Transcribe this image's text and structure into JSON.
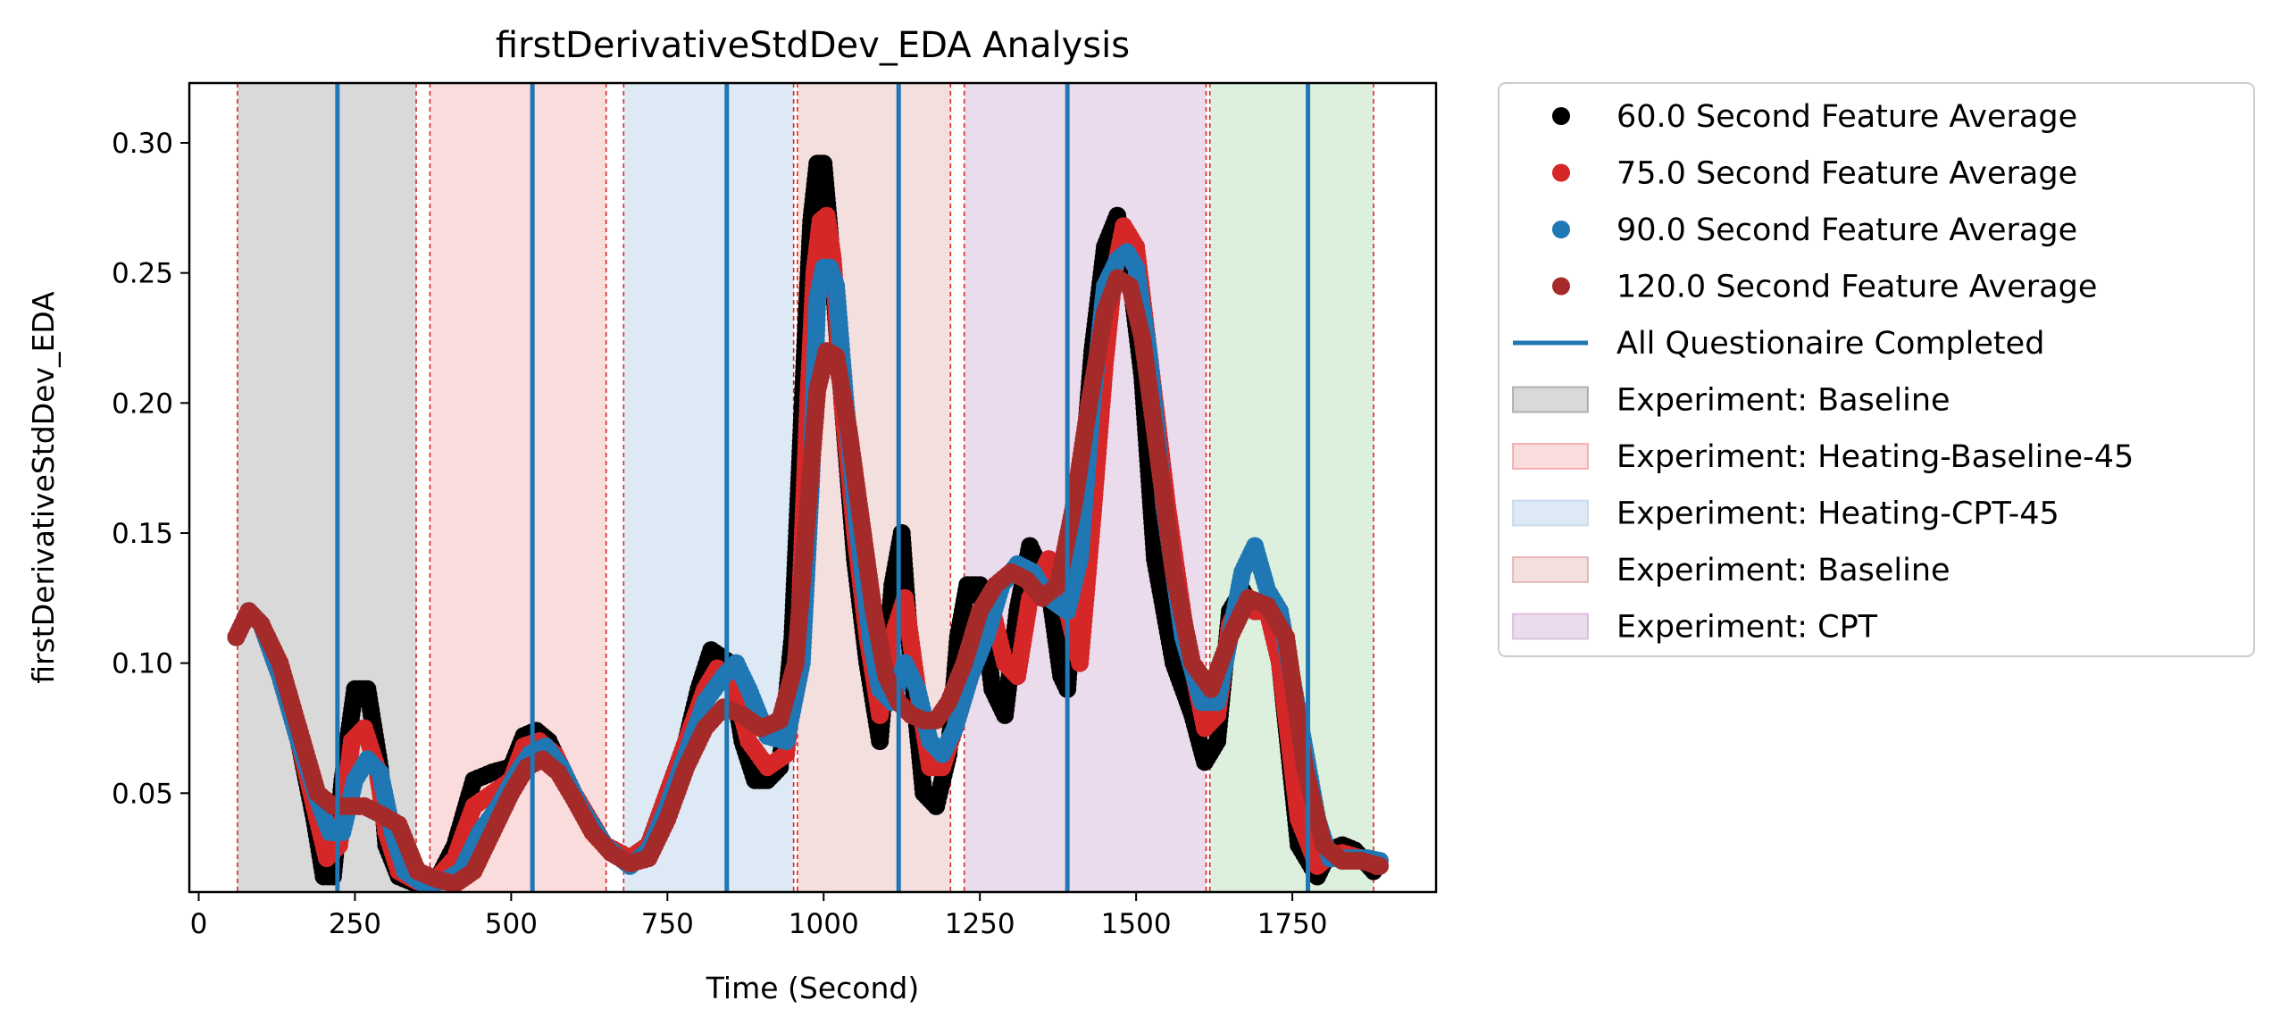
{
  "chart_data": {
    "type": "scatter",
    "title": "firstDerivativeStdDev_EDA Analysis",
    "xlabel": "Time (Second)",
    "ylabel": "firstDerivativeStdDev_EDA",
    "xlim": [
      -15,
      1980
    ],
    "ylim": [
      0.012,
      0.323
    ],
    "xticks": [
      0,
      250,
      500,
      750,
      1000,
      1250,
      1500,
      1750
    ],
    "yticks": [
      0.05,
      0.1,
      0.15,
      0.2,
      0.25,
      0.3
    ],
    "xtick_labels": [
      "0",
      "250",
      "500",
      "750",
      "1000",
      "1250",
      "1500",
      "1750"
    ],
    "ytick_labels": [
      "0.05",
      "0.10",
      "0.15",
      "0.20",
      "0.25",
      "0.30"
    ],
    "grid": false,
    "legend_position": "outside-right",
    "series": [
      {
        "name": "60.0 Second Feature Average",
        "color": "#000000",
        "x": [
          60,
          80,
          100,
          130,
          160,
          185,
          200,
          215,
          230,
          250,
          270,
          290,
          300,
          320,
          350,
          380,
          410,
          440,
          470,
          500,
          520,
          540,
          560,
          600,
          650,
          690,
          720,
          750,
          780,
          800,
          820,
          850,
          870,
          890,
          910,
          930,
          950,
          970,
          980,
          990,
          1000,
          1010,
          1030,
          1050,
          1070,
          1090,
          1110,
          1125,
          1140,
          1160,
          1180,
          1200,
          1215,
          1230,
          1250,
          1270,
          1290,
          1310,
          1330,
          1360,
          1380,
          1390,
          1410,
          1430,
          1450,
          1470,
          1490,
          1510,
          1530,
          1560,
          1590,
          1610,
          1630,
          1650,
          1670,
          1690,
          1710,
          1730,
          1760,
          1790,
          1810,
          1830,
          1850,
          1880
        ],
        "y": [
          0.11,
          0.12,
          0.115,
          0.095,
          0.07,
          0.04,
          0.018,
          0.018,
          0.055,
          0.09,
          0.09,
          0.06,
          0.03,
          0.018,
          0.015,
          0.016,
          0.03,
          0.055,
          0.058,
          0.06,
          0.072,
          0.074,
          0.07,
          0.05,
          0.03,
          0.025,
          0.03,
          0.05,
          0.07,
          0.09,
          0.105,
          0.1,
          0.07,
          0.055,
          0.055,
          0.06,
          0.11,
          0.22,
          0.27,
          0.292,
          0.292,
          0.265,
          0.2,
          0.14,
          0.1,
          0.07,
          0.13,
          0.15,
          0.1,
          0.05,
          0.045,
          0.065,
          0.11,
          0.13,
          0.13,
          0.09,
          0.08,
          0.12,
          0.145,
          0.13,
          0.095,
          0.09,
          0.16,
          0.22,
          0.26,
          0.272,
          0.25,
          0.21,
          0.14,
          0.1,
          0.08,
          0.062,
          0.07,
          0.12,
          0.128,
          0.12,
          0.125,
          0.1,
          0.03,
          0.018,
          0.028,
          0.03,
          0.028,
          0.02
        ]
      },
      {
        "name": "75.0 Second Feature Average",
        "color": "#d62728",
        "x": [
          60,
          80,
          100,
          130,
          160,
          185,
          205,
          225,
          245,
          265,
          285,
          300,
          320,
          350,
          380,
          410,
          440,
          470,
          500,
          520,
          545,
          570,
          600,
          650,
          690,
          720,
          750,
          780,
          810,
          830,
          855,
          880,
          910,
          940,
          960,
          975,
          985,
          995,
          1005,
          1015,
          1030,
          1050,
          1070,
          1090,
          1110,
          1130,
          1150,
          1170,
          1190,
          1210,
          1230,
          1250,
          1270,
          1290,
          1310,
          1330,
          1360,
          1390,
          1410,
          1430,
          1450,
          1465,
          1480,
          1500,
          1520,
          1550,
          1580,
          1610,
          1630,
          1650,
          1670,
          1690,
          1710,
          1730,
          1760,
          1790,
          1810,
          1830,
          1860,
          1885
        ],
        "y": [
          0.11,
          0.12,
          0.115,
          0.095,
          0.07,
          0.045,
          0.025,
          0.03,
          0.07,
          0.075,
          0.06,
          0.035,
          0.02,
          0.016,
          0.017,
          0.025,
          0.045,
          0.05,
          0.055,
          0.068,
          0.07,
          0.065,
          0.05,
          0.03,
          0.025,
          0.03,
          0.05,
          0.07,
          0.09,
          0.098,
          0.093,
          0.07,
          0.06,
          0.065,
          0.11,
          0.2,
          0.25,
          0.27,
          0.272,
          0.255,
          0.2,
          0.15,
          0.11,
          0.08,
          0.11,
          0.125,
          0.09,
          0.06,
          0.06,
          0.075,
          0.1,
          0.12,
          0.12,
          0.1,
          0.095,
          0.125,
          0.14,
          0.12,
          0.1,
          0.155,
          0.215,
          0.25,
          0.268,
          0.26,
          0.22,
          0.16,
          0.11,
          0.075,
          0.08,
          0.115,
          0.125,
          0.12,
          0.12,
          0.1,
          0.04,
          0.022,
          0.026,
          0.027,
          0.025,
          0.022
        ]
      },
      {
        "name": "90.0 Second Feature Average",
        "color": "#1f77b4",
        "x": [
          60,
          80,
          100,
          130,
          160,
          190,
          210,
          230,
          250,
          270,
          290,
          310,
          330,
          360,
          390,
          420,
          450,
          480,
          510,
          530,
          555,
          580,
          610,
          650,
          690,
          720,
          750,
          780,
          810,
          840,
          860,
          880,
          910,
          940,
          965,
          980,
          990,
          1000,
          1010,
          1020,
          1035,
          1055,
          1075,
          1090,
          1110,
          1130,
          1150,
          1170,
          1190,
          1210,
          1235,
          1260,
          1285,
          1310,
          1335,
          1360,
          1390,
          1410,
          1430,
          1450,
          1470,
          1485,
          1500,
          1520,
          1545,
          1575,
          1605,
          1630,
          1650,
          1670,
          1690,
          1710,
          1730,
          1760,
          1790,
          1810,
          1840,
          1870,
          1890
        ],
        "y": [
          0.11,
          0.12,
          0.115,
          0.095,
          0.07,
          0.048,
          0.035,
          0.035,
          0.055,
          0.063,
          0.058,
          0.035,
          0.02,
          0.015,
          0.016,
          0.02,
          0.035,
          0.045,
          0.058,
          0.065,
          0.068,
          0.06,
          0.045,
          0.03,
          0.022,
          0.028,
          0.045,
          0.065,
          0.085,
          0.095,
          0.1,
          0.09,
          0.072,
          0.07,
          0.1,
          0.17,
          0.24,
          0.252,
          0.252,
          0.245,
          0.2,
          0.15,
          0.11,
          0.09,
          0.085,
          0.1,
          0.09,
          0.07,
          0.065,
          0.075,
          0.095,
          0.11,
          0.13,
          0.138,
          0.135,
          0.125,
          0.12,
          0.14,
          0.2,
          0.245,
          0.255,
          0.258,
          0.252,
          0.22,
          0.16,
          0.11,
          0.085,
          0.085,
          0.11,
          0.135,
          0.145,
          0.128,
          0.12,
          0.08,
          0.04,
          0.025,
          0.025,
          0.025,
          0.024
        ]
      },
      {
        "name": "120.0 Second Feature Average",
        "color": "#a52a2a",
        "x": [
          60,
          80,
          100,
          130,
          160,
          190,
          215,
          240,
          265,
          290,
          320,
          350,
          380,
          410,
          440,
          470,
          500,
          525,
          550,
          575,
          600,
          630,
          660,
          690,
          720,
          750,
          780,
          810,
          840,
          870,
          900,
          930,
          955,
          975,
          990,
          1005,
          1020,
          1040,
          1060,
          1080,
          1100,
          1120,
          1140,
          1160,
          1180,
          1200,
          1225,
          1250,
          1275,
          1300,
          1325,
          1350,
          1375,
          1400,
          1425,
          1450,
          1470,
          1490,
          1510,
          1535,
          1560,
          1590,
          1620,
          1650,
          1680,
          1710,
          1740,
          1770,
          1800,
          1830,
          1860,
          1890
        ],
        "y": [
          0.11,
          0.12,
          0.115,
          0.1,
          0.075,
          0.05,
          0.045,
          0.045,
          0.045,
          0.042,
          0.038,
          0.02,
          0.017,
          0.015,
          0.02,
          0.035,
          0.05,
          0.06,
          0.063,
          0.058,
          0.048,
          0.035,
          0.027,
          0.023,
          0.025,
          0.04,
          0.06,
          0.075,
          0.083,
          0.08,
          0.075,
          0.078,
          0.1,
          0.16,
          0.205,
          0.22,
          0.218,
          0.19,
          0.155,
          0.12,
          0.095,
          0.085,
          0.08,
          0.078,
          0.078,
          0.085,
          0.1,
          0.12,
          0.13,
          0.135,
          0.132,
          0.125,
          0.13,
          0.16,
          0.2,
          0.235,
          0.248,
          0.245,
          0.225,
          0.18,
          0.135,
          0.1,
          0.09,
          0.11,
          0.125,
          0.122,
          0.11,
          0.06,
          0.03,
          0.024,
          0.024,
          0.022
        ]
      }
    ],
    "vertical_lines": {
      "name": "All Questionaire Completed",
      "color": "#1f77b4",
      "x": [
        222,
        534,
        845,
        1120,
        1390,
        1775
      ]
    },
    "dashed_boundaries": {
      "color": "#d62728",
      "x": [
        62,
        348,
        370,
        652,
        680,
        952,
        958,
        1203,
        1225,
        1612,
        1618,
        1880
      ]
    },
    "regions": [
      {
        "label": "Experiment: Baseline",
        "x0": 62,
        "x1": 348,
        "color": "#808080",
        "opacity": 0.3,
        "in_legend": true
      },
      {
        "label": "Experiment: Heating-Baseline-45",
        "x0": 370,
        "x1": 652,
        "color": "#f08080",
        "opacity": 0.28,
        "in_legend": true
      },
      {
        "label": "Experiment: Heating-CPT-45",
        "x0": 680,
        "x1": 952,
        "color": "#a9c8e3",
        "opacity": 0.4,
        "in_legend": true
      },
      {
        "label": "Experiment: Baseline",
        "x0": 958,
        "x1": 1203,
        "color": "#d98c8c",
        "opacity": 0.28,
        "in_legend": true
      },
      {
        "label": "Experiment: CPT",
        "x0": 1225,
        "x1": 1612,
        "color": "#c79acc",
        "opacity": 0.35,
        "in_legend": true
      },
      {
        "label": "",
        "x0": 1618,
        "x1": 1880,
        "color": "#9fd39f",
        "opacity": 0.35,
        "in_legend": false
      }
    ]
  }
}
